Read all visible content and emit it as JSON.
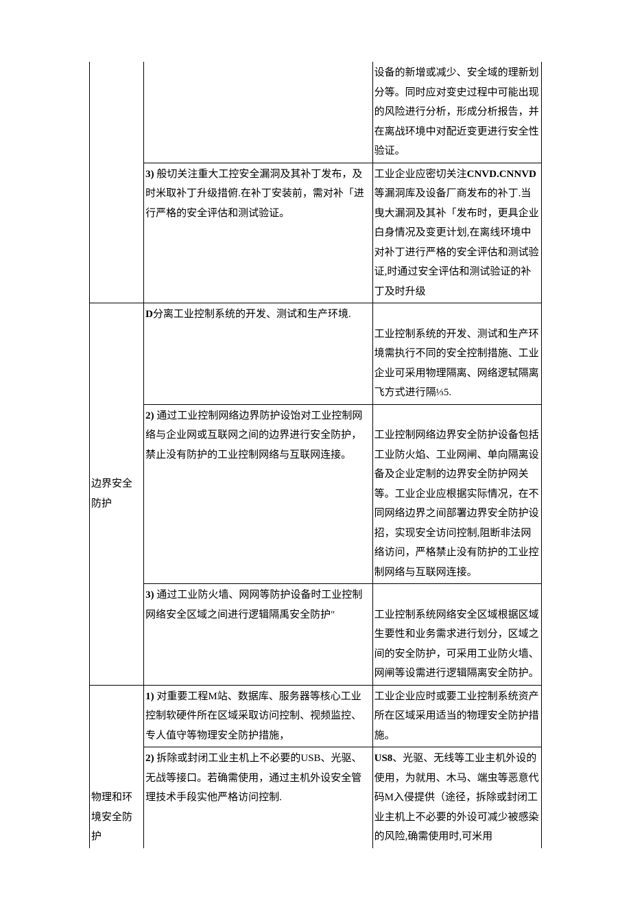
{
  "table": {
    "section1": {
      "row1": {
        "c2": "",
        "c3": "设备的新增或减少、安全域的理新划分等。同时应对变史过程中可能出现的风险进行分析，形成分析报告，并在离战环境中对配近变更进行安全性验证。"
      },
      "row2": {
        "c2_prefix": "3) ",
        "c2_text": "般切关注重大工控安全漏洞及其补丁发布，及时米取补丁升级措俯.在补丁安装前，需对补「进行严格的安全评估和测试验证。",
        "c3_prefix": "工业企业应密切关注",
        "c3_bold": "CNVD.CNNVD",
        "c3_rest": "等漏洞库及设备厂商发布的补丁.当曳大漏洞及其补「发布时，更具企业白身情况及变更计划,在离线环境中对补丁进行严格的安全评估和测试验证,时通过安全评估和测试验证的补丁及时升级"
      }
    },
    "section2": {
      "label": "边界安全防护",
      "row1": {
        "c2_prefix": "D",
        "c2_text": "分离工业控制系统的开发、测试和生产环境.",
        "c3": "工业控制系统的开发、测试和生产环境需执行不同的安全控制措施、工业企业可采用物理隔离、网络逻轼隔离飞方式进行隔⅓5."
      },
      "row2": {
        "c2_prefix": "2) ",
        "c2_text": "通过工业控制网络边界防护设饴对工业控制网络与企业网或互联网之间的边界进行安全防护，禁止没有防护的工业控制网络与互联网连接。",
        "c3": "工业控制网络边界安全防护设备包括工业防火焰、工业网闸、单向隔离设备及企业定制的边界安全防护网关等。工业企业应根据实际情况，在不同网络边界之间部署边界安全防护设招，实现安全访问控制,阻断非法网络访问，严格禁止没有防护的工业控制网络与互联网连接。"
      },
      "row3": {
        "c2_prefix": "3) ",
        "c2_text": "通过工业防火墙、网网等防护设备时工业控制网络安全区域之间进行逻辑隔禹安全防护\"",
        "c3": "工业控制系统网络安全区域根据区域生要性和业务需求进行划分，区域之间的安全防护，可采用工业防火墙、网闸等设需进行逻辑隔离安全防护。"
      }
    },
    "section3": {
      "label": "物理和环境安全防护",
      "row1": {
        "c2_prefix": "1) ",
        "c2_text": "对重要工程M站、数据库、服务器等核心工业控制软硬件所在区域采取访问控制、视频监控、专人值守等物理安全防护措施，",
        "c3": "工业企业应时或要工业控制系统资产所在区域采用适当的物理安全防护措施。"
      },
      "row2": {
        "c2_prefix": "2) ",
        "c2_text": "拆除或封闭工业主机上不必要的USB、光驱、无战等接口。若确需使用，通过主机外设安全管理技术手段实他严格访问控制.",
        "c3_bold": "US8",
        "c3_rest": "、光驱、无线等工业主机外设的使用，为就用、木马、端虫等恶意代码M入侵提供（途径，拆除或封闭工业主机上不必要的外设可减少被感染的风险,确需使用时,可米用"
      }
    }
  }
}
